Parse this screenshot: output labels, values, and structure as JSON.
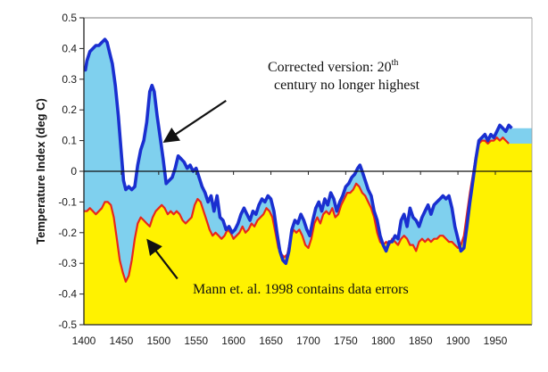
{
  "chart_data": {
    "type": "area",
    "title": "",
    "xlabel": "",
    "ylabel": "Temperature Index (deg C)",
    "xlim": [
      1400,
      1980
    ],
    "ylim": [
      -0.5,
      0.5
    ],
    "x_ticks": [
      1400,
      1450,
      1500,
      1550,
      1600,
      1650,
      1700,
      1750,
      1800,
      1850,
      1900,
      1950
    ],
    "y_ticks": [
      0.5,
      0.4,
      0.3,
      0.2,
      0.1,
      0,
      -0.1,
      -0.2,
      -0.3,
      -0.4,
      -0.5
    ],
    "y_tick_labels": [
      "0.5",
      "0.4",
      "0.3",
      "0.2",
      "0.1",
      "0",
      "-0.1",
      "-0.2",
      "-0.3",
      "-0.4",
      "-0.5"
    ],
    "grid": false,
    "series": [
      {
        "name": "Corrected version",
        "line_color": "#1a2fd0",
        "fill_color": "#7fd0ee",
        "points": [
          [
            1400,
            0.33
          ],
          [
            1402,
            0.33
          ],
          [
            1404,
            0.36
          ],
          [
            1408,
            0.39
          ],
          [
            1412,
            0.4
          ],
          [
            1416,
            0.41
          ],
          [
            1420,
            0.41
          ],
          [
            1424,
            0.42
          ],
          [
            1428,
            0.43
          ],
          [
            1431,
            0.42
          ],
          [
            1434,
            0.39
          ],
          [
            1438,
            0.35
          ],
          [
            1442,
            0.28
          ],
          [
            1446,
            0.18
          ],
          [
            1450,
            0.06
          ],
          [
            1453,
            -0.03
          ],
          [
            1456,
            -0.06
          ],
          [
            1460,
            -0.05
          ],
          [
            1464,
            -0.06
          ],
          [
            1468,
            -0.05
          ],
          [
            1472,
            0.02
          ],
          [
            1476,
            0.07
          ],
          [
            1480,
            0.1
          ],
          [
            1484,
            0.16
          ],
          [
            1488,
            0.26
          ],
          [
            1491,
            0.28
          ],
          [
            1494,
            0.26
          ],
          [
            1498,
            0.18
          ],
          [
            1502,
            0.11
          ],
          [
            1506,
            0.04
          ],
          [
            1510,
            -0.04
          ],
          [
            1514,
            -0.03
          ],
          [
            1518,
            -0.02
          ],
          [
            1522,
            0.01
          ],
          [
            1526,
            0.05
          ],
          [
            1530,
            0.04
          ],
          [
            1534,
            0.03
          ],
          [
            1538,
            0.01
          ],
          [
            1542,
            0.02
          ],
          [
            1546,
            0.0
          ],
          [
            1550,
            0.01
          ],
          [
            1554,
            -0.02
          ],
          [
            1558,
            -0.05
          ],
          [
            1562,
            -0.07
          ],
          [
            1566,
            -0.1
          ],
          [
            1570,
            -0.08
          ],
          [
            1574,
            -0.13
          ],
          [
            1578,
            -0.08
          ],
          [
            1582,
            -0.15
          ],
          [
            1586,
            -0.16
          ],
          [
            1590,
            -0.19
          ],
          [
            1594,
            -0.18
          ],
          [
            1598,
            -0.2
          ],
          [
            1602,
            -0.19
          ],
          [
            1606,
            -0.17
          ],
          [
            1610,
            -0.14
          ],
          [
            1614,
            -0.12
          ],
          [
            1618,
            -0.14
          ],
          [
            1622,
            -0.16
          ],
          [
            1626,
            -0.13
          ],
          [
            1630,
            -0.14
          ],
          [
            1634,
            -0.11
          ],
          [
            1638,
            -0.09
          ],
          [
            1642,
            -0.1
          ],
          [
            1646,
            -0.08
          ],
          [
            1650,
            -0.09
          ],
          [
            1654,
            -0.13
          ],
          [
            1658,
            -0.2
          ],
          [
            1662,
            -0.26
          ],
          [
            1666,
            -0.29
          ],
          [
            1670,
            -0.3
          ],
          [
            1674,
            -0.26
          ],
          [
            1678,
            -0.19
          ],
          [
            1682,
            -0.16
          ],
          [
            1686,
            -0.17
          ],
          [
            1690,
            -0.14
          ],
          [
            1694,
            -0.16
          ],
          [
            1698,
            -0.19
          ],
          [
            1702,
            -0.21
          ],
          [
            1706,
            -0.16
          ],
          [
            1710,
            -0.12
          ],
          [
            1714,
            -0.1
          ],
          [
            1718,
            -0.13
          ],
          [
            1722,
            -0.09
          ],
          [
            1726,
            -0.11
          ],
          [
            1730,
            -0.07
          ],
          [
            1734,
            -0.09
          ],
          [
            1738,
            -0.13
          ],
          [
            1742,
            -0.1
          ],
          [
            1746,
            -0.08
          ],
          [
            1750,
            -0.05
          ],
          [
            1754,
            -0.04
          ],
          [
            1758,
            -0.02
          ],
          [
            1762,
            -0.01
          ],
          [
            1766,
            0.01
          ],
          [
            1769,
            0.02
          ],
          [
            1772,
            0.0
          ],
          [
            1776,
            -0.03
          ],
          [
            1780,
            -0.06
          ],
          [
            1784,
            -0.08
          ],
          [
            1788,
            -0.13
          ],
          [
            1792,
            -0.16
          ],
          [
            1796,
            -0.21
          ],
          [
            1800,
            -0.24
          ],
          [
            1804,
            -0.26
          ],
          [
            1808,
            -0.23
          ],
          [
            1812,
            -0.23
          ],
          [
            1816,
            -0.21
          ],
          [
            1820,
            -0.22
          ],
          [
            1824,
            -0.16
          ],
          [
            1828,
            -0.14
          ],
          [
            1832,
            -0.18
          ],
          [
            1836,
            -0.12
          ],
          [
            1840,
            -0.15
          ],
          [
            1844,
            -0.16
          ],
          [
            1848,
            -0.18
          ],
          [
            1852,
            -0.15
          ],
          [
            1856,
            -0.13
          ],
          [
            1860,
            -0.11
          ],
          [
            1864,
            -0.14
          ],
          [
            1868,
            -0.11
          ],
          [
            1872,
            -0.1
          ],
          [
            1876,
            -0.09
          ],
          [
            1880,
            -0.08
          ],
          [
            1884,
            -0.09
          ],
          [
            1888,
            -0.08
          ],
          [
            1892,
            -0.12
          ],
          [
            1896,
            -0.18
          ],
          [
            1900,
            -0.22
          ],
          [
            1904,
            -0.26
          ],
          [
            1908,
            -0.25
          ],
          [
            1912,
            -0.18
          ],
          [
            1916,
            -0.1
          ],
          [
            1920,
            -0.03
          ],
          [
            1924,
            0.04
          ],
          [
            1928,
            0.1
          ],
          [
            1932,
            0.11
          ],
          [
            1936,
            0.12
          ],
          [
            1940,
            0.1
          ],
          [
            1944,
            0.12
          ],
          [
            1948,
            0.11
          ],
          [
            1952,
            0.13
          ],
          [
            1956,
            0.15
          ],
          [
            1960,
            0.14
          ],
          [
            1964,
            0.13
          ],
          [
            1968,
            0.15
          ],
          [
            1972,
            0.14
          ]
        ]
      },
      {
        "name": "Mann et. al. 1998",
        "line_color": "#e8261c",
        "fill_color": "#fff200",
        "points": [
          [
            1400,
            -0.13
          ],
          [
            1404,
            -0.13
          ],
          [
            1408,
            -0.12
          ],
          [
            1412,
            -0.13
          ],
          [
            1416,
            -0.14
          ],
          [
            1420,
            -0.13
          ],
          [
            1424,
            -0.12
          ],
          [
            1428,
            -0.1
          ],
          [
            1432,
            -0.1
          ],
          [
            1436,
            -0.11
          ],
          [
            1440,
            -0.15
          ],
          [
            1444,
            -0.22
          ],
          [
            1448,
            -0.29
          ],
          [
            1452,
            -0.33
          ],
          [
            1456,
            -0.36
          ],
          [
            1460,
            -0.34
          ],
          [
            1464,
            -0.29
          ],
          [
            1468,
            -0.22
          ],
          [
            1472,
            -0.17
          ],
          [
            1476,
            -0.15
          ],
          [
            1480,
            -0.16
          ],
          [
            1484,
            -0.17
          ],
          [
            1488,
            -0.18
          ],
          [
            1492,
            -0.15
          ],
          [
            1496,
            -0.13
          ],
          [
            1500,
            -0.12
          ],
          [
            1504,
            -0.11
          ],
          [
            1508,
            -0.12
          ],
          [
            1512,
            -0.14
          ],
          [
            1516,
            -0.13
          ],
          [
            1520,
            -0.14
          ],
          [
            1524,
            -0.13
          ],
          [
            1528,
            -0.14
          ],
          [
            1532,
            -0.16
          ],
          [
            1536,
            -0.17
          ],
          [
            1540,
            -0.16
          ],
          [
            1544,
            -0.15
          ],
          [
            1548,
            -0.11
          ],
          [
            1552,
            -0.09
          ],
          [
            1556,
            -0.1
          ],
          [
            1560,
            -0.13
          ],
          [
            1564,
            -0.16
          ],
          [
            1568,
            -0.19
          ],
          [
            1572,
            -0.21
          ],
          [
            1576,
            -0.2
          ],
          [
            1580,
            -0.21
          ],
          [
            1584,
            -0.22
          ],
          [
            1588,
            -0.21
          ],
          [
            1592,
            -0.19
          ],
          [
            1596,
            -0.2
          ],
          [
            1600,
            -0.22
          ],
          [
            1604,
            -0.21
          ],
          [
            1608,
            -0.2
          ],
          [
            1612,
            -0.18
          ],
          [
            1616,
            -0.2
          ],
          [
            1620,
            -0.19
          ],
          [
            1624,
            -0.17
          ],
          [
            1628,
            -0.18
          ],
          [
            1632,
            -0.16
          ],
          [
            1636,
            -0.15
          ],
          [
            1640,
            -0.14
          ],
          [
            1644,
            -0.12
          ],
          [
            1648,
            -0.13
          ],
          [
            1652,
            -0.15
          ],
          [
            1656,
            -0.2
          ],
          [
            1660,
            -0.25
          ],
          [
            1664,
            -0.27
          ],
          [
            1668,
            -0.28
          ],
          [
            1672,
            -0.27
          ],
          [
            1676,
            -0.22
          ],
          [
            1680,
            -0.19
          ],
          [
            1684,
            -0.2
          ],
          [
            1688,
            -0.19
          ],
          [
            1692,
            -0.21
          ],
          [
            1696,
            -0.24
          ],
          [
            1700,
            -0.25
          ],
          [
            1704,
            -0.22
          ],
          [
            1708,
            -0.17
          ],
          [
            1712,
            -0.15
          ],
          [
            1716,
            -0.17
          ],
          [
            1720,
            -0.14
          ],
          [
            1724,
            -0.13
          ],
          [
            1728,
            -0.14
          ],
          [
            1732,
            -0.12
          ],
          [
            1736,
            -0.15
          ],
          [
            1740,
            -0.14
          ],
          [
            1744,
            -0.11
          ],
          [
            1748,
            -0.09
          ],
          [
            1752,
            -0.07
          ],
          [
            1756,
            -0.07
          ],
          [
            1760,
            -0.06
          ],
          [
            1764,
            -0.04
          ],
          [
            1768,
            -0.05
          ],
          [
            1772,
            -0.07
          ],
          [
            1776,
            -0.08
          ],
          [
            1780,
            -0.1
          ],
          [
            1784,
            -0.12
          ],
          [
            1788,
            -0.15
          ],
          [
            1792,
            -0.2
          ],
          [
            1796,
            -0.23
          ],
          [
            1800,
            -0.24
          ],
          [
            1804,
            -0.23
          ],
          [
            1808,
            -0.24
          ],
          [
            1812,
            -0.22
          ],
          [
            1816,
            -0.23
          ],
          [
            1820,
            -0.24
          ],
          [
            1824,
            -0.22
          ],
          [
            1828,
            -0.21
          ],
          [
            1832,
            -0.22
          ],
          [
            1836,
            -0.24
          ],
          [
            1840,
            -0.24
          ],
          [
            1844,
            -0.26
          ],
          [
            1848,
            -0.23
          ],
          [
            1852,
            -0.22
          ],
          [
            1856,
            -0.23
          ],
          [
            1860,
            -0.22
          ],
          [
            1864,
            -0.23
          ],
          [
            1868,
            -0.22
          ],
          [
            1872,
            -0.22
          ],
          [
            1876,
            -0.21
          ],
          [
            1880,
            -0.21
          ],
          [
            1884,
            -0.22
          ],
          [
            1888,
            -0.23
          ],
          [
            1892,
            -0.23
          ],
          [
            1896,
            -0.24
          ],
          [
            1900,
            -0.25
          ],
          [
            1904,
            -0.24
          ],
          [
            1908,
            -0.21
          ],
          [
            1912,
            -0.14
          ],
          [
            1916,
            -0.07
          ],
          [
            1920,
            -0.01
          ],
          [
            1924,
            0.05
          ],
          [
            1928,
            0.09
          ],
          [
            1932,
            0.1
          ],
          [
            1936,
            0.1
          ],
          [
            1940,
            0.09
          ],
          [
            1944,
            0.1
          ],
          [
            1948,
            0.1
          ],
          [
            1952,
            0.11
          ],
          [
            1956,
            0.1
          ],
          [
            1960,
            0.11
          ],
          [
            1964,
            0.1
          ],
          [
            1968,
            0.09
          ]
        ]
      }
    ],
    "annotations": [
      {
        "id": "corrected",
        "lines": [
          "Corrected version: 20",
          "century no longer highest"
        ],
        "superscript": "th",
        "arrow_from": [
          1590,
          0.23
        ],
        "arrow_to": [
          1510,
          0.1
        ]
      },
      {
        "id": "mann",
        "lines": [
          "Mann et. al. 1998 contains data errors"
        ],
        "arrow_from": [
          1525,
          -0.35
        ],
        "arrow_to": [
          1487,
          -0.23
        ]
      }
    ],
    "legend": "none",
    "zero_line": true
  }
}
